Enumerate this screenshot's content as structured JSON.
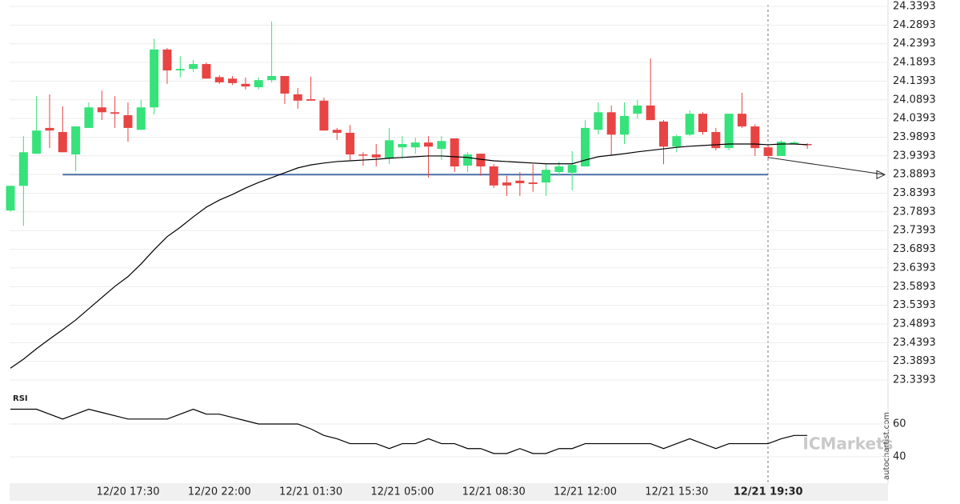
{
  "chart_data": [
    {
      "type": "candlestick",
      "categories": [
        null,
        null,
        null,
        null,
        null,
        null,
        null,
        null,
        null,
        "12/20 17:30",
        null,
        null,
        null,
        null,
        null,
        null,
        "12/20 22:00",
        null,
        null,
        null,
        null,
        null,
        null,
        "12/21 01:30",
        null,
        null,
        null,
        null,
        null,
        null,
        "12/21 05:00",
        null,
        null,
        null,
        null,
        null,
        null,
        "12/21 08:30",
        null,
        null,
        null,
        null,
        null,
        null,
        "12/21 12:00",
        null,
        null,
        null,
        null,
        null,
        null,
        "12/21 15:30",
        null,
        null,
        null,
        null,
        null,
        null,
        "12/21 19:30",
        null,
        null,
        null
      ],
      "open": [
        23.793,
        23.859,
        23.945,
        24.014,
        24.003,
        23.943,
        24.014,
        24.069,
        24.056,
        24.048,
        24.009,
        24.069,
        24.224,
        24.168,
        24.172,
        24.185,
        24.15,
        24.146,
        24.132,
        24.123,
        24.142,
        24.153,
        24.104,
        24.091,
        24.087,
        24.009,
        24.001,
        23.943,
        23.943,
        23.932,
        23.962,
        23.962,
        23.975,
        23.958,
        23.986,
        23.913,
        23.945,
        23.911,
        23.868,
        23.873,
        23.868,
        23.868,
        23.896,
        23.894,
        23.911,
        24.009,
        24.056,
        23.996,
        24.052,
        24.074,
        24.031,
        23.964,
        23.996,
        24.052,
        24.003,
        23.96,
        24.052,
        24.018,
        23.962,
        23.939,
        23.975,
        23.971
      ],
      "high": [
        23.859,
        23.992,
        24.099,
        24.104,
        24.072,
        24.018,
        24.082,
        24.114,
        24.099,
        24.082,
        24.089,
        24.253,
        24.228,
        24.206,
        24.196,
        24.189,
        24.155,
        24.153,
        24.149,
        24.149,
        24.299,
        24.153,
        24.121,
        24.151,
        24.095,
        24.014,
        24.022,
        23.949,
        23.971,
        24.014,
        23.992,
        23.988,
        23.992,
        23.992,
        23.986,
        23.949,
        23.945,
        23.917,
        23.886,
        23.896,
        23.917,
        23.917,
        23.924,
        23.952,
        24.035,
        24.082,
        24.074,
        24.082,
        24.089,
        24.2,
        24.035,
        23.996,
        24.061,
        24.056,
        24.014,
        24.052,
        24.108,
        24.024,
        23.967,
        23.981,
        23.979,
        23.973
      ],
      "low": [
        23.79,
        23.752,
        23.945,
        23.96,
        23.949,
        23.898,
        24.014,
        24.035,
        24.014,
        23.977,
        24.009,
        24.05,
        24.132,
        24.149,
        24.164,
        24.146,
        24.132,
        24.129,
        24.117,
        24.117,
        24.136,
        24.078,
        24.065,
        24.087,
        24.007,
        23.982,
        23.928,
        23.913,
        23.911,
        23.917,
        23.932,
        23.945,
        23.881,
        23.928,
        23.896,
        23.896,
        23.886,
        23.853,
        23.832,
        23.832,
        23.843,
        23.832,
        23.886,
        23.847,
        23.911,
        23.996,
        23.939,
        23.971,
        24.039,
        24.035,
        23.917,
        23.949,
        23.992,
        23.996,
        23.954,
        23.954,
        24.014,
        23.939,
        23.932,
        23.939,
        23.971,
        23.958
      ],
      "close": [
        23.859,
        23.949,
        24.007,
        24.007,
        23.949,
        24.018,
        24.069,
        24.056,
        24.052,
        24.014,
        24.069,
        24.224,
        24.168,
        24.172,
        24.185,
        24.146,
        24.136,
        24.134,
        24.125,
        24.142,
        24.153,
        24.106,
        24.087,
        24.087,
        24.007,
        24.001,
        23.943,
        23.941,
        23.935,
        23.981,
        23.971,
        23.975,
        23.964,
        23.979,
        23.911,
        23.943,
        23.911,
        23.86,
        23.86,
        23.866,
        23.864,
        23.902,
        23.911,
        23.915,
        24.014,
        24.056,
        23.996,
        24.046,
        24.074,
        24.035,
        23.964,
        23.992,
        24.052,
        24.003,
        23.96,
        24.052,
        24.018,
        23.96,
        23.939,
        23.977,
        23.975,
        23.969
      ],
      "up_color": "#36e27a",
      "down_color": "#e84444",
      "ma_values": [
        23.371,
        23.395,
        23.423,
        23.449,
        23.474,
        23.5,
        23.53,
        23.56,
        23.59,
        23.616,
        23.65,
        23.688,
        23.723,
        23.748,
        23.776,
        23.802,
        23.821,
        23.836,
        23.853,
        23.868,
        23.881,
        23.894,
        23.907,
        23.915,
        23.92,
        23.924,
        23.926,
        23.928,
        23.93,
        23.933,
        23.935,
        23.937,
        23.939,
        23.939,
        23.937,
        23.935,
        23.93,
        23.926,
        23.924,
        23.922,
        23.92,
        23.918,
        23.918,
        23.918,
        23.928,
        23.937,
        23.941,
        23.945,
        23.95,
        23.954,
        23.958,
        23.962,
        23.965,
        23.967,
        23.969,
        23.971,
        23.971,
        23.971,
        23.969,
        23.971,
        23.971,
        23.969
      ],
      "ma_color": "#000000",
      "level": 23.889,
      "level_color": "#4a6fa5",
      "forecast": [
        23.935,
        23.889
      ],
      "ylim": [
        23.3393,
        24.3393
      ],
      "yticks": [
        24.3393,
        24.2893,
        24.2393,
        24.1893,
        24.1393,
        24.0893,
        24.0393,
        23.9893,
        23.9393,
        23.8893,
        23.8393,
        23.7893,
        23.7393,
        23.6893,
        23.6393,
        23.5893,
        23.5393,
        23.4893,
        23.4393,
        23.3893,
        23.3393
      ],
      "grid": true
    },
    {
      "type": "line",
      "title": "RSI",
      "values": [
        69,
        69,
        69,
        66,
        63,
        66,
        69,
        67,
        65,
        63,
        63,
        63,
        63,
        66,
        69,
        66,
        66,
        64,
        62,
        60,
        60,
        60,
        60,
        57,
        53,
        51,
        48,
        48,
        48,
        45,
        48,
        48,
        51,
        48,
        48,
        45,
        45,
        42,
        42,
        45,
        42,
        42,
        45,
        45,
        48,
        48,
        48,
        48,
        48,
        48,
        45,
        48,
        51,
        48,
        45,
        48,
        48,
        48,
        48,
        51,
        53,
        53
      ],
      "color": "#000000",
      "ylim": [
        23.4,
        79.5
      ],
      "yticks": [
        40,
        60
      ],
      "grid": true
    }
  ],
  "watermark": "ICMarkets",
  "source": "autochartist.com"
}
